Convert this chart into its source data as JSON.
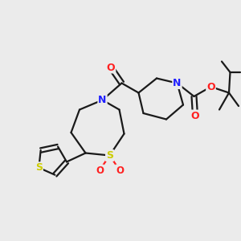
{
  "bg_color": "#ebebeb",
  "bond_color": "#1a1a1a",
  "N_color": "#2020ff",
  "O_color": "#ff2020",
  "S_color": "#cccc00",
  "S_ring_color": "#cccc00",
  "line_width": 1.6,
  "figsize": [
    3.0,
    3.0
  ],
  "dpi": 100,
  "xlim": [
    0,
    10
  ],
  "ylim": [
    0,
    10
  ]
}
